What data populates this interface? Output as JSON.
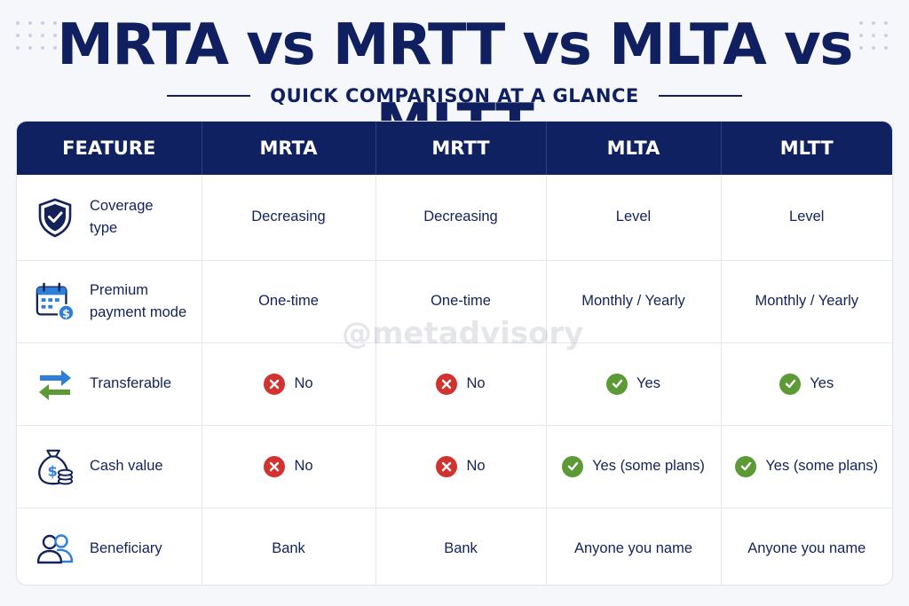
{
  "title": "MRTA vs MRTT vs MLTA vs MLTT",
  "subtitle": "QUICK COMPARISON AT A GLANCE",
  "watermark": "@metadvisory",
  "colors": {
    "header_bg": "#0f2160",
    "yes": "#5c9a36",
    "no": "#d2332f",
    "accent_blue": "#2f7ed8"
  },
  "table": {
    "headers": [
      "FEATURE",
      "MRTA",
      "MRTT",
      "MLTA",
      "MLTT"
    ],
    "rows": [
      {
        "icon": "shield-check-icon",
        "label_lines": [
          "Coverage",
          "type"
        ],
        "cells": [
          {
            "text": "Decreasing"
          },
          {
            "text": "Decreasing"
          },
          {
            "text": "Level"
          },
          {
            "text": "Level"
          }
        ]
      },
      {
        "icon": "calendar-dollar-icon",
        "label_lines": [
          "Premium",
          "payment mode"
        ],
        "cells": [
          {
            "text": "One-time"
          },
          {
            "text": "One-time"
          },
          {
            "text": "Monthly / Yearly"
          },
          {
            "text": "Monthly / Yearly"
          }
        ]
      },
      {
        "icon": "transfer-arrows-icon",
        "label_lines": [
          "Transferable"
        ],
        "cells": [
          {
            "text": "No",
            "status": "no"
          },
          {
            "text": "No",
            "status": "no"
          },
          {
            "text": "Yes",
            "status": "yes"
          },
          {
            "text": "Yes",
            "status": "yes"
          }
        ]
      },
      {
        "icon": "money-bag-icon",
        "label_lines": [
          "Cash value"
        ],
        "cells": [
          {
            "text": "No",
            "status": "no"
          },
          {
            "text": "No",
            "status": "no"
          },
          {
            "text": "Yes (some plans)",
            "status": "yes"
          },
          {
            "text": "Yes (some plans)",
            "status": "yes"
          }
        ]
      },
      {
        "icon": "people-icon",
        "label_lines": [
          "Beneficiary"
        ],
        "cells": [
          {
            "text": "Bank"
          },
          {
            "text": "Bank"
          },
          {
            "text": "Anyone you name"
          },
          {
            "text": "Anyone you name"
          }
        ]
      }
    ]
  }
}
